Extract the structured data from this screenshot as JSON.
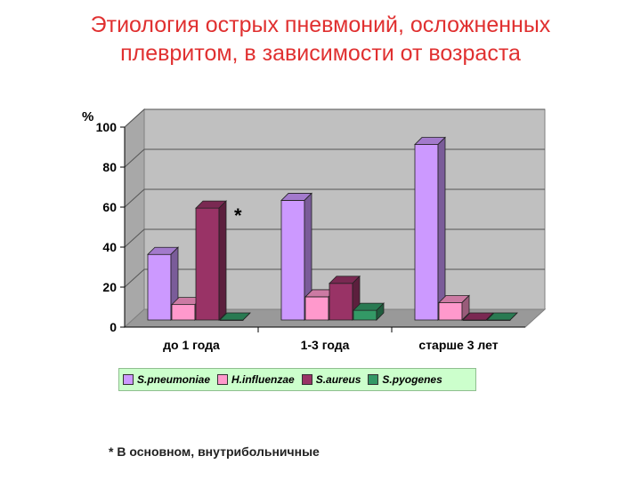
{
  "title_line1": "Этиология острых пневмоний, осложненных",
  "title_line2": "плевритом, в зависимости от возраста",
  "chart_data": {
    "type": "bar",
    "categories": [
      "до 1 года",
      "1-3 года",
      "старше 3 лет"
    ],
    "series": [
      {
        "name": "S.pneumoniae",
        "color": "#cc99ff",
        "values": [
          34,
          62,
          91
        ]
      },
      {
        "name": "H.influenzae",
        "color": "#ff99cc",
        "values": [
          8,
          12,
          9
        ]
      },
      {
        "name": "S.aureus",
        "color": "#993366",
        "values": [
          58,
          19,
          0
        ]
      },
      {
        "name": "S.pyogenes",
        "color": "#339966",
        "values": [
          0,
          5,
          0
        ]
      }
    ],
    "ylabel": "%",
    "ylim": [
      0,
      100
    ],
    "yticks": [
      0,
      20,
      40,
      60,
      80,
      100
    ],
    "grid": true,
    "annotation": "*",
    "legend_position": "bottom"
  },
  "footnote": "* В основном, внутрибольничные"
}
